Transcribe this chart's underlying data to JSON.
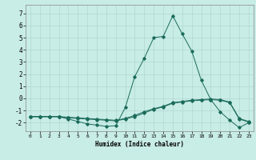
{
  "xlabel": "Humidex (Indice chaleur)",
  "background_color": "#c8ece6",
  "line_color": "#1a6b5a",
  "grid_color": "#b0d8d0",
  "xlim": [
    -0.5,
    23.5
  ],
  "ylim": [
    -2.7,
    7.7
  ],
  "yticks": [
    -2,
    -1,
    0,
    1,
    2,
    3,
    4,
    5,
    6,
    7
  ],
  "xticks": [
    0,
    1,
    2,
    3,
    4,
    5,
    6,
    7,
    8,
    9,
    10,
    11,
    12,
    13,
    14,
    15,
    16,
    17,
    18,
    19,
    20,
    21,
    22,
    23
  ],
  "series": [
    [
      [
        0,
        -1.5
      ],
      [
        1,
        -1.5
      ],
      [
        2,
        -1.5
      ],
      [
        3,
        -1.5
      ],
      [
        4,
        -1.7
      ],
      [
        5,
        -1.9
      ],
      [
        6,
        -2.1
      ],
      [
        7,
        -2.2
      ],
      [
        8,
        -2.3
      ],
      [
        9,
        -2.25
      ],
      [
        10,
        -0.75
      ],
      [
        11,
        1.8
      ],
      [
        12,
        3.3
      ],
      [
        13,
        5.0
      ],
      [
        14,
        5.1
      ],
      [
        15,
        6.8
      ],
      [
        16,
        5.3
      ],
      [
        17,
        3.9
      ],
      [
        18,
        1.5
      ],
      [
        19,
        -0.1
      ],
      [
        20,
        -1.1
      ],
      [
        21,
        -1.8
      ],
      [
        22,
        -2.4
      ],
      [
        23,
        -2.0
      ]
    ],
    [
      [
        0,
        -1.5
      ],
      [
        1,
        -1.5
      ],
      [
        2,
        -1.5
      ],
      [
        3,
        -1.5
      ],
      [
        4,
        -1.6
      ],
      [
        5,
        -1.65
      ],
      [
        6,
        -1.7
      ],
      [
        7,
        -1.75
      ],
      [
        8,
        -1.8
      ],
      [
        9,
        -1.85
      ],
      [
        10,
        -1.7
      ],
      [
        11,
        -1.5
      ],
      [
        12,
        -1.2
      ],
      [
        13,
        -0.9
      ],
      [
        14,
        -0.7
      ],
      [
        15,
        -0.4
      ],
      [
        16,
        -0.3
      ],
      [
        17,
        -0.2
      ],
      [
        18,
        -0.15
      ],
      [
        19,
        -0.1
      ],
      [
        20,
        -0.15
      ],
      [
        21,
        -0.35
      ],
      [
        22,
        -1.7
      ],
      [
        23,
        -1.95
      ]
    ],
    [
      [
        0,
        -1.5
      ],
      [
        1,
        -1.5
      ],
      [
        2,
        -1.5
      ],
      [
        3,
        -1.5
      ],
      [
        4,
        -1.55
      ],
      [
        5,
        -1.6
      ],
      [
        6,
        -1.65
      ],
      [
        7,
        -1.7
      ],
      [
        8,
        -1.75
      ],
      [
        9,
        -1.8
      ],
      [
        10,
        -1.65
      ],
      [
        11,
        -1.4
      ],
      [
        12,
        -1.1
      ],
      [
        13,
        -0.85
      ],
      [
        14,
        -0.65
      ],
      [
        15,
        -0.35
      ],
      [
        16,
        -0.25
      ],
      [
        17,
        -0.15
      ],
      [
        18,
        -0.1
      ],
      [
        19,
        -0.05
      ],
      [
        20,
        -0.1
      ],
      [
        21,
        -0.3
      ],
      [
        22,
        -1.65
      ],
      [
        23,
        -1.9
      ]
    ]
  ]
}
